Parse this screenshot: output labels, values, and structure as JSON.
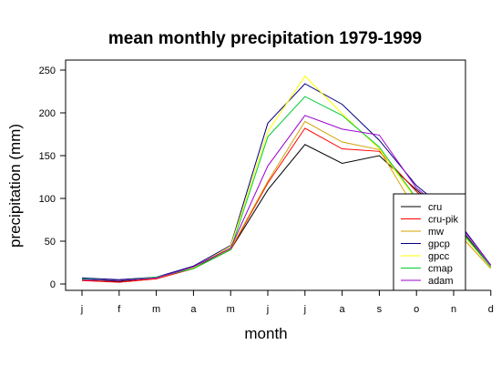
{
  "chart_data": {
    "type": "line",
    "title": "mean monthly precipitation 1979-1999",
    "xlabel": "month",
    "ylabel": "precipitation (mm)",
    "categories": [
      "j",
      "f",
      "m",
      "a",
      "m",
      "j",
      "j",
      "a",
      "s",
      "o",
      "n",
      "d"
    ],
    "ylim": [
      0,
      250
    ],
    "yticks": [
      0,
      50,
      100,
      150,
      200,
      250
    ],
    "grid": false,
    "legend_position": "bottom-right",
    "series": [
      {
        "name": "cru",
        "color": "#000000",
        "values": [
          5,
          3,
          7,
          19,
          40,
          110,
          163,
          141,
          150,
          110,
          75,
          20
        ]
      },
      {
        "name": "cru-pik",
        "color": "#ff0000",
        "values": [
          4,
          2,
          6,
          18,
          40,
          118,
          182,
          158,
          155,
          108,
          70,
          20
        ]
      },
      {
        "name": "mw",
        "color": "#d4a000",
        "values": [
          5,
          4,
          7,
          20,
          41,
          120,
          190,
          166,
          157,
          85,
          65,
          18
        ]
      },
      {
        "name": "gpcp",
        "color": "#000080",
        "values": [
          7,
          5,
          8,
          21,
          45,
          188,
          234,
          210,
          168,
          115,
          80,
          22
        ]
      },
      {
        "name": "gpcc",
        "color": "#ffff00",
        "values": [
          5,
          4,
          7,
          19,
          44,
          178,
          243,
          199,
          158,
          98,
          70,
          20
        ]
      },
      {
        "name": "cmap",
        "color": "#00cc33",
        "values": [
          6,
          4,
          8,
          18,
          40,
          172,
          219,
          197,
          160,
          100,
          72,
          20
        ]
      },
      {
        "name": "adam",
        "color": "#9900cc",
        "values": [
          5,
          4,
          7,
          20,
          42,
          138,
          197,
          181,
          174,
          112,
          78,
          22
        ]
      }
    ]
  }
}
